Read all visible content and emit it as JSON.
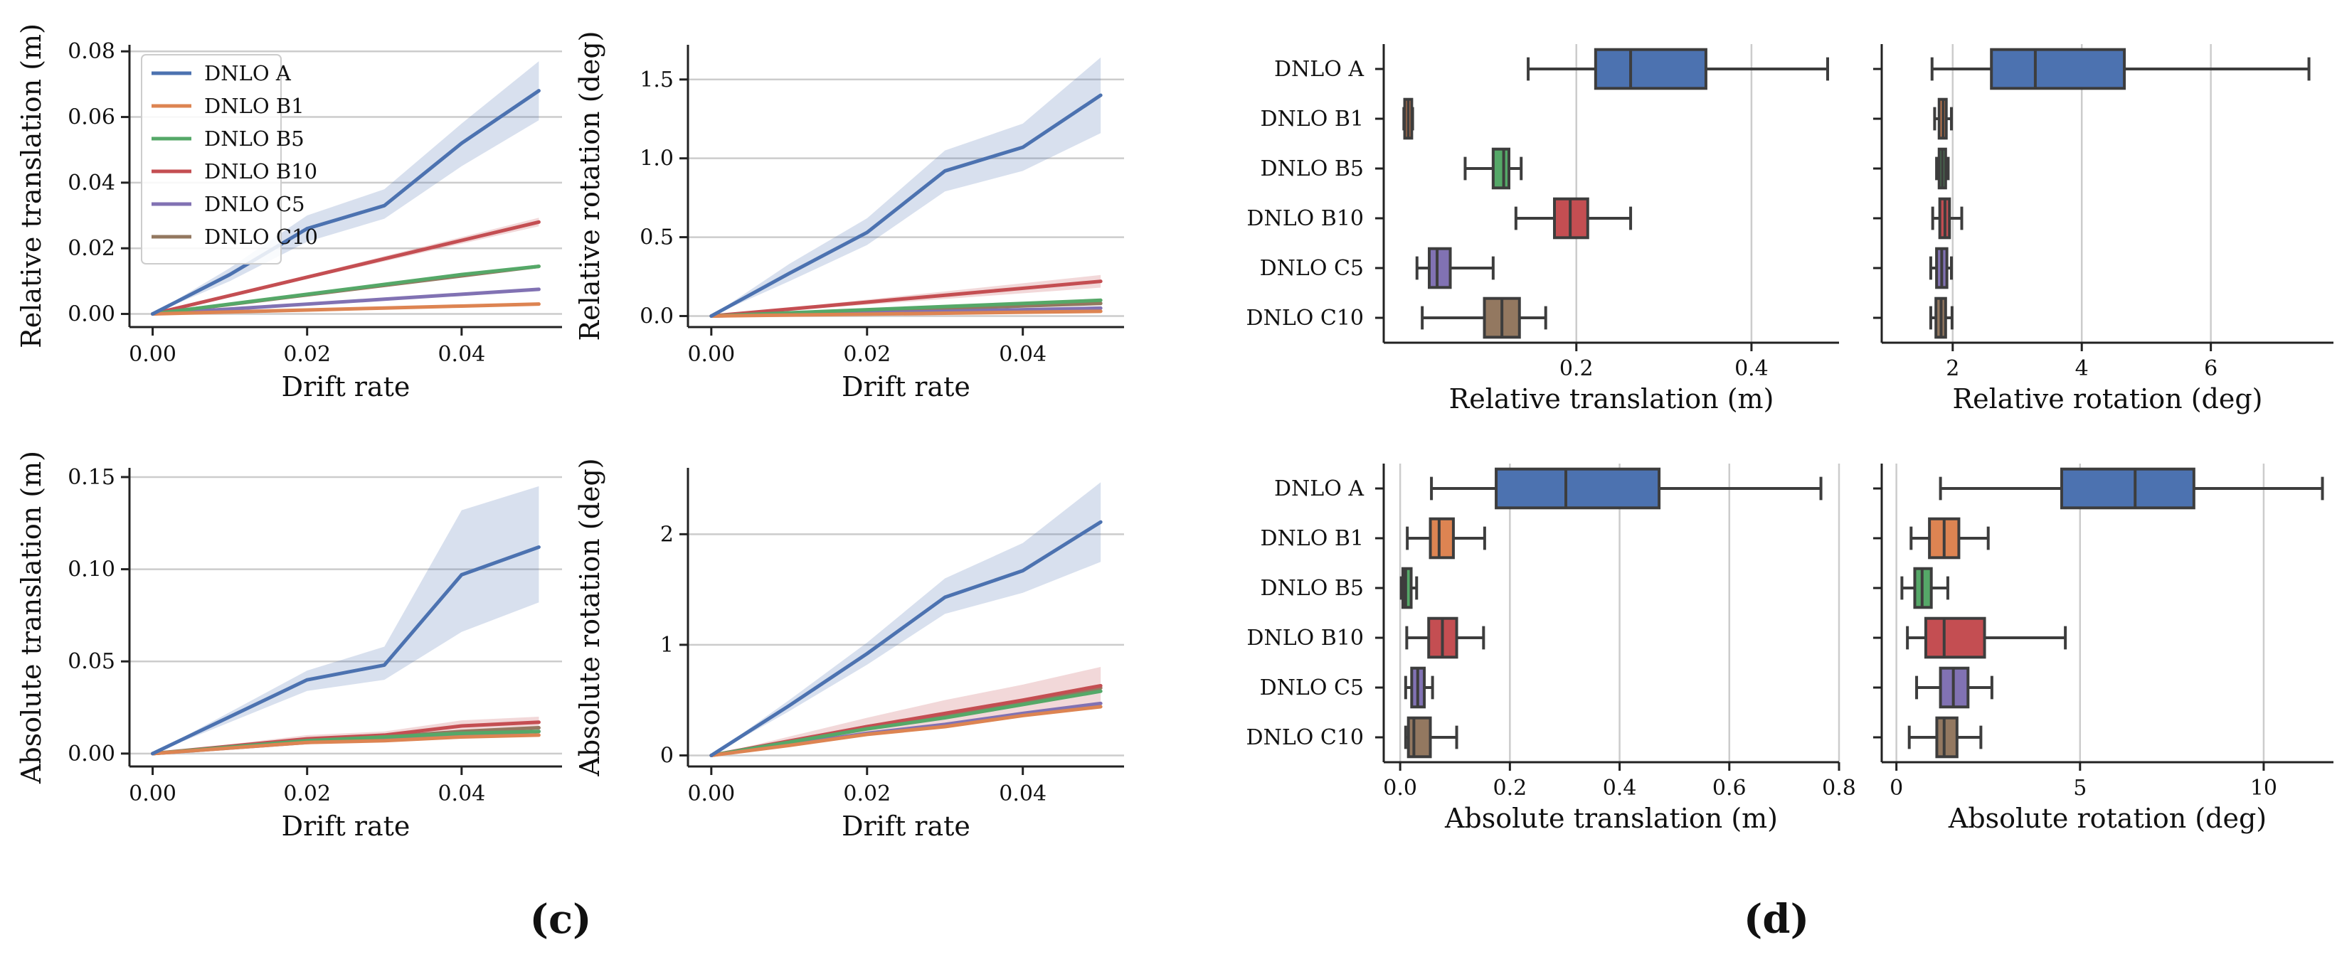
{
  "series_colors": {
    "DNLO A": "#4c72b0",
    "DNLO B1": "#dd8452",
    "DNLO B5": "#55a868",
    "DNLO B10": "#c44e52",
    "DNLO C5": "#8172b3",
    "DNLO C10": "#937860"
  },
  "legend": [
    "DNLO A",
    "DNLO B1",
    "DNLO B5",
    "DNLO B10",
    "DNLO C5",
    "DNLO C10"
  ],
  "panel_labels": {
    "c": "(c)",
    "d": "(d)"
  },
  "chart_data": [
    {
      "id": "c-rel-trans",
      "type": "line",
      "xlabel": "Drift rate",
      "ylabel": "Relative translation (m)",
      "xlim": [
        -0.003,
        0.053
      ],
      "ylim": [
        -0.004,
        0.082
      ],
      "xticks": [
        0.0,
        0.02,
        0.04
      ],
      "xtick_labels": [
        "0.00",
        "0.02",
        "0.04"
      ],
      "yticks": [
        0.0,
        0.02,
        0.04,
        0.06,
        0.08
      ],
      "ytick_labels": [
        "0.00",
        "0.02",
        "0.04",
        "0.06",
        "0.08"
      ],
      "grid": "horizontal",
      "legend": "top-left",
      "x": [
        0.0,
        0.01,
        0.02,
        0.03,
        0.04,
        0.05
      ],
      "series": [
        {
          "name": "DNLO A",
          "values": [
            0.0,
            0.012,
            0.026,
            0.033,
            0.052,
            0.068
          ],
          "lower": [
            0.0,
            0.01,
            0.022,
            0.029,
            0.045,
            0.059
          ],
          "upper": [
            0.0,
            0.014,
            0.03,
            0.038,
            0.058,
            0.077
          ]
        },
        {
          "name": "DNLO B1",
          "values": [
            0.0,
            0.0006,
            0.0012,
            0.0018,
            0.0024,
            0.003
          ]
        },
        {
          "name": "DNLO B5",
          "values": [
            0.0,
            0.003,
            0.006,
            0.009,
            0.012,
            0.0145
          ]
        },
        {
          "name": "DNLO B10",
          "values": [
            0.0,
            0.0056,
            0.0112,
            0.0168,
            0.0224,
            0.028
          ],
          "lower": [
            0.0,
            0.0054,
            0.0107,
            0.016,
            0.0214,
            0.0267
          ],
          "upper": [
            0.0,
            0.0058,
            0.0117,
            0.0176,
            0.0234,
            0.0293
          ]
        },
        {
          "name": "DNLO C5",
          "values": [
            0.0,
            0.0015,
            0.003,
            0.0045,
            0.006,
            0.0075
          ]
        },
        {
          "name": "DNLO C10",
          "values": [
            0.0,
            0.0029,
            0.0058,
            0.0087,
            0.0116,
            0.0145
          ]
        }
      ]
    },
    {
      "id": "c-rel-rot",
      "type": "line",
      "xlabel": "Drift rate",
      "ylabel": "Relative rotation (deg)",
      "xlim": [
        -0.003,
        0.053
      ],
      "ylim": [
        -0.07,
        1.72
      ],
      "xticks": [
        0.0,
        0.02,
        0.04
      ],
      "xtick_labels": [
        "0.00",
        "0.02",
        "0.04"
      ],
      "yticks": [
        0.0,
        0.5,
        1.0,
        1.5
      ],
      "ytick_labels": [
        "0.0",
        "0.5",
        "1.0",
        "1.5"
      ],
      "grid": "horizontal",
      "x": [
        0.0,
        0.01,
        0.02,
        0.03,
        0.04,
        0.05
      ],
      "series": [
        {
          "name": "DNLO A",
          "values": [
            0.0,
            0.27,
            0.53,
            0.92,
            1.07,
            1.4
          ],
          "lower": [
            0.0,
            0.22,
            0.45,
            0.79,
            0.92,
            1.16
          ],
          "upper": [
            0.0,
            0.33,
            0.62,
            1.05,
            1.22,
            1.64
          ]
        },
        {
          "name": "DNLO B1",
          "values": [
            0.0,
            0.006,
            0.012,
            0.018,
            0.024,
            0.03
          ]
        },
        {
          "name": "DNLO B5",
          "values": [
            0.0,
            0.02,
            0.04,
            0.06,
            0.08,
            0.1
          ]
        },
        {
          "name": "DNLO B10",
          "values": [
            0.0,
            0.044,
            0.088,
            0.132,
            0.176,
            0.22
          ],
          "lower": [
            0.0,
            0.036,
            0.072,
            0.108,
            0.144,
            0.18
          ],
          "upper": [
            0.0,
            0.052,
            0.104,
            0.156,
            0.208,
            0.26
          ]
        },
        {
          "name": "DNLO C5",
          "values": [
            0.0,
            0.01,
            0.02,
            0.03,
            0.04,
            0.05
          ]
        },
        {
          "name": "DNLO C10",
          "values": [
            0.0,
            0.016,
            0.032,
            0.048,
            0.064,
            0.08
          ]
        }
      ]
    },
    {
      "id": "c-abs-trans",
      "type": "line",
      "xlabel": "Drift rate",
      "ylabel": "Absolute translation (m)",
      "xlim": [
        -0.003,
        0.053
      ],
      "ylim": [
        -0.007,
        0.155
      ],
      "xticks": [
        0.0,
        0.02,
        0.04
      ],
      "xtick_labels": [
        "0.00",
        "0.02",
        "0.04"
      ],
      "yticks": [
        0.0,
        0.05,
        0.1,
        0.15
      ],
      "ytick_labels": [
        "0.00",
        "0.05",
        "0.10",
        "0.15"
      ],
      "grid": "horizontal",
      "x": [
        0.0,
        0.02,
        0.03,
        0.04,
        0.05
      ],
      "series": [
        {
          "name": "DNLO A",
          "values": [
            0.0,
            0.04,
            0.048,
            0.097,
            0.112
          ],
          "lower": [
            0.0,
            0.034,
            0.04,
            0.066,
            0.082
          ],
          "upper": [
            0.0,
            0.045,
            0.058,
            0.132,
            0.145
          ]
        },
        {
          "name": "DNLO B1",
          "values": [
            0.0,
            0.006,
            0.007,
            0.009,
            0.01
          ]
        },
        {
          "name": "DNLO B5",
          "values": [
            0.0,
            0.007,
            0.009,
            0.011,
            0.012
          ]
        },
        {
          "name": "DNLO B10",
          "values": [
            0.0,
            0.008,
            0.01,
            0.015,
            0.017
          ],
          "lower": [
            0.0,
            0.006,
            0.008,
            0.012,
            0.014
          ],
          "upper": [
            0.0,
            0.01,
            0.012,
            0.018,
            0.02
          ]
        },
        {
          "name": "DNLO C5",
          "values": [
            0.0,
            0.006,
            0.008,
            0.01,
            0.012
          ]
        },
        {
          "name": "DNLO C10",
          "values": [
            0.0,
            0.007,
            0.009,
            0.012,
            0.014
          ]
        }
      ]
    },
    {
      "id": "c-abs-rot",
      "type": "line",
      "xlabel": "Drift rate",
      "ylabel": "Absolute rotation (deg)",
      "xlim": [
        -0.003,
        0.053
      ],
      "ylim": [
        -0.1,
        2.6
      ],
      "xticks": [
        0.0,
        0.02,
        0.04
      ],
      "xtick_labels": [
        "0.00",
        "0.02",
        "0.04"
      ],
      "yticks": [
        0,
        1,
        2
      ],
      "ytick_labels": [
        "0",
        "1",
        "2"
      ],
      "grid": "horizontal",
      "x": [
        0.0,
        0.01,
        0.02,
        0.03,
        0.04,
        0.05
      ],
      "series": [
        {
          "name": "DNLO A",
          "values": [
            0.0,
            0.45,
            0.92,
            1.43,
            1.67,
            2.11
          ],
          "lower": [
            0.0,
            0.4,
            0.82,
            1.28,
            1.47,
            1.75
          ],
          "upper": [
            0.0,
            0.5,
            1.02,
            1.6,
            1.92,
            2.47
          ]
        },
        {
          "name": "DNLO B1",
          "values": [
            0.0,
            0.09,
            0.19,
            0.26,
            0.36,
            0.44
          ]
        },
        {
          "name": "DNLO B5",
          "values": [
            0.0,
            0.12,
            0.24,
            0.34,
            0.46,
            0.58
          ]
        },
        {
          "name": "DNLO B10",
          "values": [
            0.0,
            0.13,
            0.26,
            0.38,
            0.5,
            0.63
          ],
          "lower": [
            0.0,
            0.09,
            0.18,
            0.27,
            0.37,
            0.47
          ],
          "upper": [
            0.0,
            0.17,
            0.34,
            0.5,
            0.64,
            0.8
          ]
        },
        {
          "name": "DNLO C5",
          "values": [
            0.0,
            0.1,
            0.2,
            0.28,
            0.38,
            0.47
          ]
        },
        {
          "name": "DNLO C10",
          "values": [
            0.0,
            0.12,
            0.26,
            0.36,
            0.48,
            0.61
          ]
        }
      ]
    },
    {
      "id": "d-rel-trans",
      "type": "box",
      "orientation": "horizontal",
      "xlabel": "Relative translation (m)",
      "categories": [
        "DNLO A",
        "DNLO B1",
        "DNLO B5",
        "DNLO B10",
        "DNLO C5",
        "DNLO C10"
      ],
      "xlim": [
        -0.02,
        0.5
      ],
      "xticks": [
        0.2,
        0.4
      ],
      "xtick_labels": [
        "0.2",
        "0.4"
      ],
      "grid": "vertical",
      "boxes": [
        {
          "min": 0.145,
          "q1": 0.222,
          "median": 0.262,
          "q3": 0.348,
          "max": 0.487
        },
        {
          "min": 0.003,
          "q1": 0.004,
          "median": 0.008,
          "q3": 0.012,
          "max": 0.013
        },
        {
          "min": 0.073,
          "q1": 0.105,
          "median": 0.117,
          "q3": 0.123,
          "max": 0.137
        },
        {
          "min": 0.131,
          "q1": 0.175,
          "median": 0.193,
          "q3": 0.213,
          "max": 0.262
        },
        {
          "min": 0.018,
          "q1": 0.032,
          "median": 0.041,
          "q3": 0.056,
          "max": 0.105
        },
        {
          "min": 0.024,
          "q1": 0.095,
          "median": 0.115,
          "q3": 0.135,
          "max": 0.165
        }
      ]
    },
    {
      "id": "d-rel-rot",
      "type": "box",
      "orientation": "horizontal",
      "xlabel": "Relative rotation (deg)",
      "categories": [
        "DNLO A",
        "DNLO B1",
        "DNLO B5",
        "DNLO B10",
        "DNLO C5",
        "DNLO C10"
      ],
      "xlim": [
        0.9,
        7.9
      ],
      "xticks": [
        2,
        4,
        6
      ],
      "xtick_labels": [
        "2",
        "4",
        "6"
      ],
      "grid": "vertical",
      "boxes": [
        {
          "min": 1.68,
          "q1": 2.6,
          "median": 3.28,
          "q3": 4.66,
          "max": 7.52
        },
        {
          "min": 1.72,
          "q1": 1.79,
          "median": 1.85,
          "q3": 1.9,
          "max": 1.98
        },
        {
          "min": 1.75,
          "q1": 1.79,
          "median": 1.84,
          "q3": 1.89,
          "max": 1.93
        },
        {
          "min": 1.69,
          "q1": 1.8,
          "median": 1.88,
          "q3": 1.95,
          "max": 2.14
        },
        {
          "min": 1.66,
          "q1": 1.75,
          "median": 1.83,
          "q3": 1.91,
          "max": 1.98
        },
        {
          "min": 1.66,
          "q1": 1.74,
          "median": 1.82,
          "q3": 1.89,
          "max": 1.99
        }
      ]
    },
    {
      "id": "d-abs-trans",
      "type": "box",
      "orientation": "horizontal",
      "xlabel": "Absolute translation (m)",
      "categories": [
        "DNLO A",
        "DNLO B1",
        "DNLO B5",
        "DNLO B10",
        "DNLO C5",
        "DNLO C10"
      ],
      "xlim": [
        -0.03,
        0.8
      ],
      "xticks": [
        0.0,
        0.2,
        0.4,
        0.6,
        0.8
      ],
      "xtick_labels": [
        "0.0",
        "0.2",
        "0.4",
        "0.6",
        "0.8"
      ],
      "grid": "vertical",
      "boxes": [
        {
          "min": 0.057,
          "q1": 0.175,
          "median": 0.302,
          "q3": 0.472,
          "max": 0.767
        },
        {
          "min": 0.013,
          "q1": 0.055,
          "median": 0.071,
          "q3": 0.097,
          "max": 0.154
        },
        {
          "min": 0.002,
          "q1": 0.005,
          "median": 0.01,
          "q3": 0.02,
          "max": 0.03
        },
        {
          "min": 0.012,
          "q1": 0.052,
          "median": 0.077,
          "q3": 0.103,
          "max": 0.152
        },
        {
          "min": 0.01,
          "q1": 0.021,
          "median": 0.032,
          "q3": 0.044,
          "max": 0.059
        },
        {
          "min": 0.01,
          "q1": 0.015,
          "median": 0.025,
          "q3": 0.055,
          "max": 0.103
        }
      ]
    },
    {
      "id": "d-abs-rot",
      "type": "box",
      "orientation": "horizontal",
      "xlabel": "Absolute rotation (deg)",
      "categories": [
        "DNLO A",
        "DNLO B1",
        "DNLO B5",
        "DNLO B10",
        "DNLO C5",
        "DNLO C10"
      ],
      "xlim": [
        -0.4,
        11.9
      ],
      "xticks": [
        0,
        5,
        10
      ],
      "xtick_labels": [
        "0",
        "5",
        "10"
      ],
      "grid": "vertical",
      "boxes": [
        {
          "min": 1.2,
          "q1": 4.5,
          "median": 6.5,
          "q3": 8.1,
          "max": 11.6
        },
        {
          "min": 0.4,
          "q1": 0.9,
          "median": 1.3,
          "q3": 1.7,
          "max": 2.5
        },
        {
          "min": 0.15,
          "q1": 0.5,
          "median": 0.7,
          "q3": 0.95,
          "max": 1.4
        },
        {
          "min": 0.3,
          "q1": 0.8,
          "median": 1.3,
          "q3": 2.4,
          "max": 4.6
        },
        {
          "min": 0.55,
          "q1": 1.2,
          "median": 1.55,
          "q3": 1.95,
          "max": 2.6
        },
        {
          "min": 0.35,
          "q1": 1.1,
          "median": 1.3,
          "q3": 1.65,
          "max": 2.3
        }
      ]
    }
  ]
}
